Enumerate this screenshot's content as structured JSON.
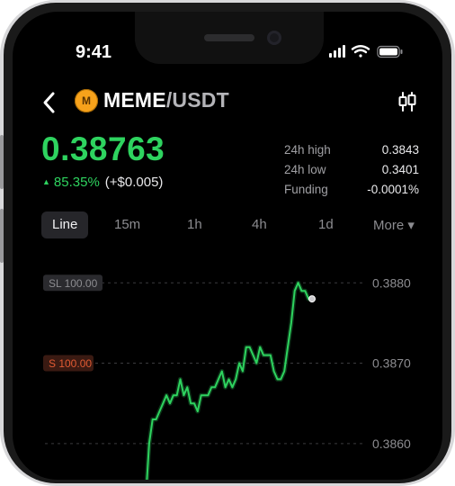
{
  "status_bar": {
    "time": "9:41"
  },
  "header": {
    "coin_glyph": "M",
    "base": "MEME",
    "quote": "/USDT",
    "back_icon": "chevron-left-icon",
    "settings_icon": "candlestick-icon"
  },
  "ticker": {
    "price": "0.38763",
    "change_pct": "85.35%",
    "change_abs": "(+$0.005)",
    "up_color": "#2ed35f"
  },
  "stats": [
    {
      "label": "24h high",
      "value": "0.3843"
    },
    {
      "label": "24h low",
      "value": "0.3401"
    },
    {
      "label": "Funding",
      "value": "-0.0001%"
    }
  ],
  "tabs": [
    {
      "label": "Line",
      "active": true
    },
    {
      "label": "15m"
    },
    {
      "label": "1h"
    },
    {
      "label": "4h"
    },
    {
      "label": "1d"
    },
    {
      "label": "More ▾"
    }
  ],
  "chart_data": {
    "type": "line",
    "y_ticks": [
      "0.3880",
      "0.3870",
      "0.3860"
    ],
    "y_tick_values": [
      0.388,
      0.387,
      0.386
    ],
    "ylim": [
      0.38555,
      0.38835
    ],
    "price_lines": [
      {
        "label": "SL 100.00",
        "value": 0.388,
        "color": "#8c8c90"
      },
      {
        "label": "S 100.00",
        "value": 0.387,
        "color": "#e05a33"
      }
    ],
    "series": [
      {
        "color": "#2ed35f",
        "x": [
          0,
          1,
          2,
          3,
          4,
          5,
          6,
          7,
          8,
          9,
          10,
          11,
          12,
          13,
          14,
          15,
          16,
          17,
          18,
          19,
          20,
          21,
          22,
          23,
          24,
          25,
          26,
          27,
          28,
          29,
          30,
          31,
          32,
          33,
          34,
          35,
          36,
          37,
          38,
          39,
          40,
          41,
          42,
          43,
          44,
          45,
          46,
          47,
          48
        ],
        "y": [
          0.3853,
          0.386,
          0.3863,
          0.3863,
          0.3864,
          0.3865,
          0.3866,
          0.3865,
          0.3866,
          0.3866,
          0.3868,
          0.3866,
          0.3867,
          0.3865,
          0.3865,
          0.3864,
          0.3866,
          0.3866,
          0.3866,
          0.3867,
          0.3867,
          0.3868,
          0.3869,
          0.3867,
          0.3868,
          0.3867,
          0.3868,
          0.387,
          0.3869,
          0.3872,
          0.3872,
          0.3871,
          0.387,
          0.3872,
          0.3871,
          0.3871,
          0.3871,
          0.3869,
          0.3868,
          0.3868,
          0.3869,
          0.3872,
          0.3875,
          0.3879,
          0.388,
          0.3879,
          0.3879,
          0.3878,
          0.3878
        ]
      }
    ]
  }
}
